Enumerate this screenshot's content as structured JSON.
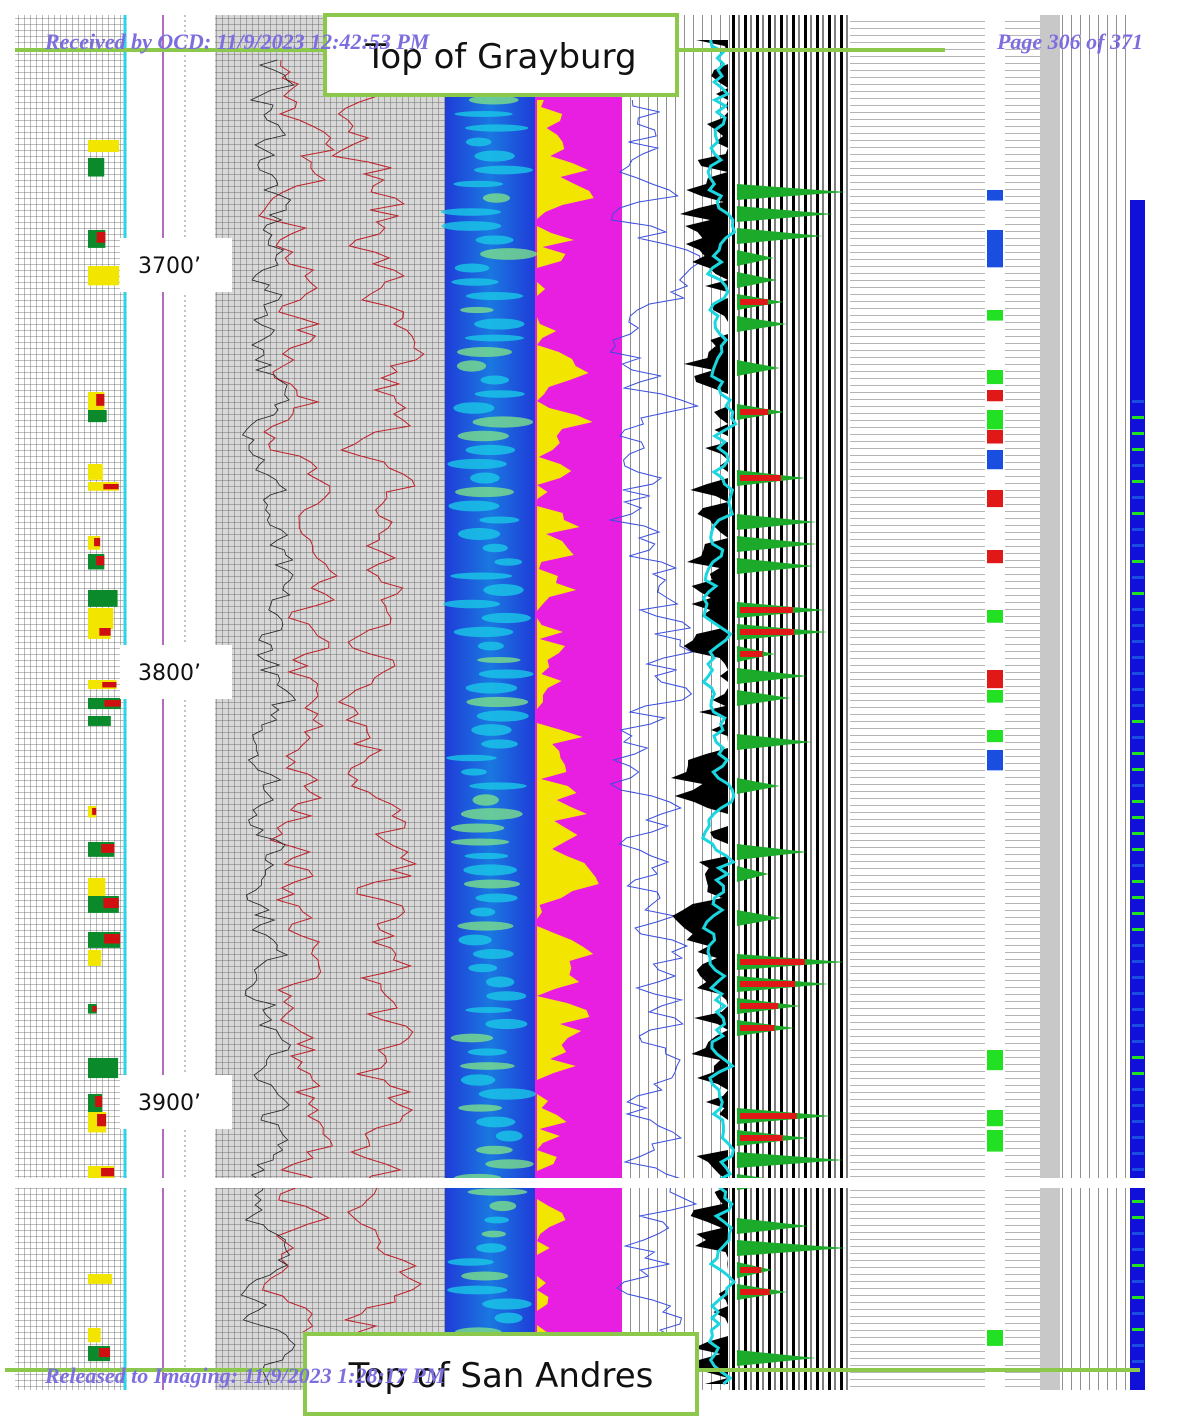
{
  "header": {
    "received": "Received by OCD: 11/9/2023 12:42:53 PM",
    "page": "Page 306 of 371"
  },
  "footer": {
    "released": "Released to Imaging: 11/9/2023 1:28:17 PM"
  },
  "tops": {
    "upper": "Top of Grayburg",
    "lower": "Top of San Andres"
  },
  "depths": [
    "3700’",
    "3800’",
    "3900’"
  ]
}
